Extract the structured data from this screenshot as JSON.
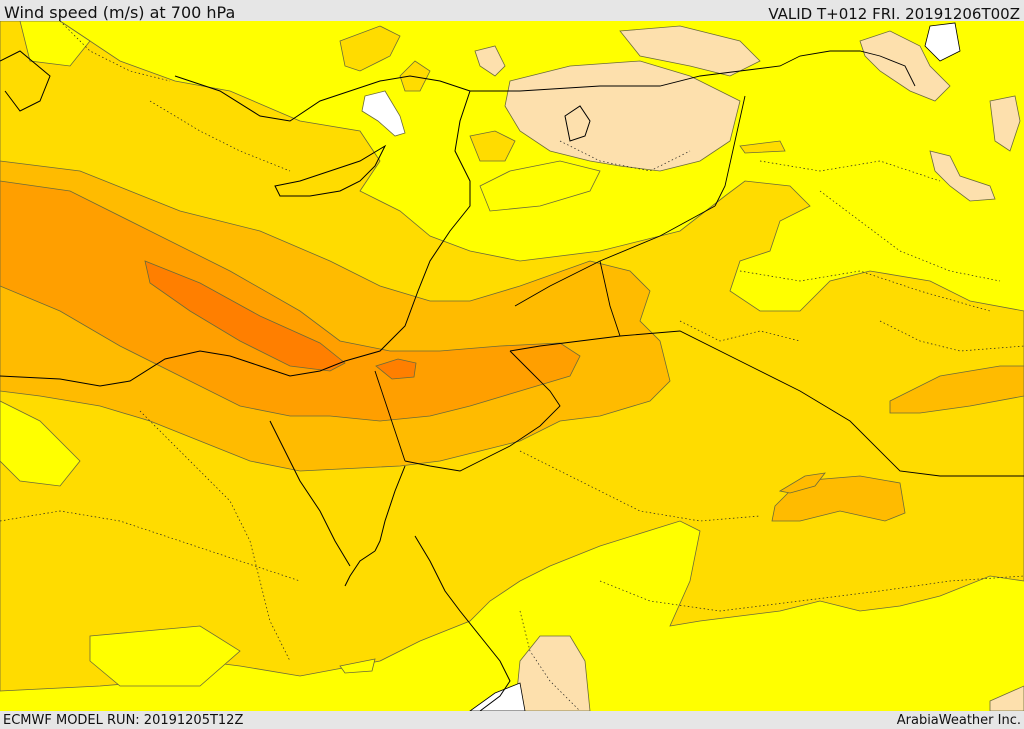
{
  "header": {
    "title": "Wind speed (m/s) at 700 hPa",
    "valid": "VALID T+012 FRI. 20191206T00Z"
  },
  "footer": {
    "model_run": "ECMWF MODEL RUN: 20191205T12Z",
    "credit": "ArabiaWeather Inc."
  },
  "colors": {
    "level_0": "#ffff00",
    "level_1": "#ffdc00",
    "level_2": "#ffbb00",
    "level_3": "#ff9f00",
    "level_4": "#ff7f00",
    "calm": "#fde0ad",
    "sea_gap": "#ffffff",
    "contour": "#6b6b3a",
    "coast": "#000000"
  }
}
